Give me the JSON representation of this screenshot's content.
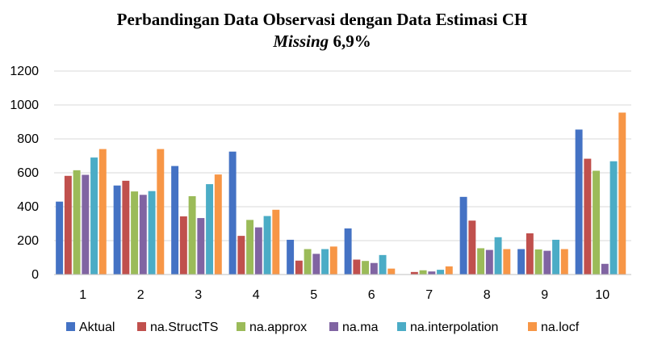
{
  "chart_data": {
    "type": "bar",
    "title_line1": "Perbandingan Data Observasi dengan Data Estimasi CH",
    "title_line2_italic": "Missing",
    "title_line2_rest": " 6,9%",
    "xlabel": "",
    "ylabel": "",
    "ylim": [
      0,
      1200
    ],
    "yticks": [
      "0",
      "200",
      "400",
      "600",
      "800",
      "1000",
      "1200"
    ],
    "grid": true,
    "legend_position": "bottom",
    "categories": [
      "1",
      "2",
      "3",
      "4",
      "5",
      "6",
      "7",
      "8",
      "9",
      "10"
    ],
    "series": [
      {
        "name": "Aktual",
        "color": "#4472C4",
        "values": [
          430,
          525,
          640,
          725,
          205,
          272,
          0,
          458,
          150,
          855
        ]
      },
      {
        "name": "na.StructTS",
        "color": "#C0504D",
        "values": [
          582,
          553,
          343,
          228,
          82,
          88,
          15,
          318,
          243,
          683
        ]
      },
      {
        "name": "na.approx",
        "color": "#9BBB59",
        "values": [
          615,
          490,
          462,
          322,
          150,
          80,
          25,
          155,
          148,
          612
        ]
      },
      {
        "name": "na.ma",
        "color": "#8064A2",
        "values": [
          588,
          470,
          333,
          278,
          122,
          68,
          18,
          145,
          140,
          63
        ]
      },
      {
        "name": "na.interpolation",
        "color": "#4BACC6",
        "values": [
          690,
          492,
          533,
          345,
          150,
          115,
          28,
          220,
          205,
          668
        ]
      },
      {
        "name": "na.locf",
        "color": "#F79646",
        "values": [
          740,
          740,
          590,
          382,
          165,
          35,
          48,
          150,
          150,
          955
        ]
      }
    ]
  }
}
